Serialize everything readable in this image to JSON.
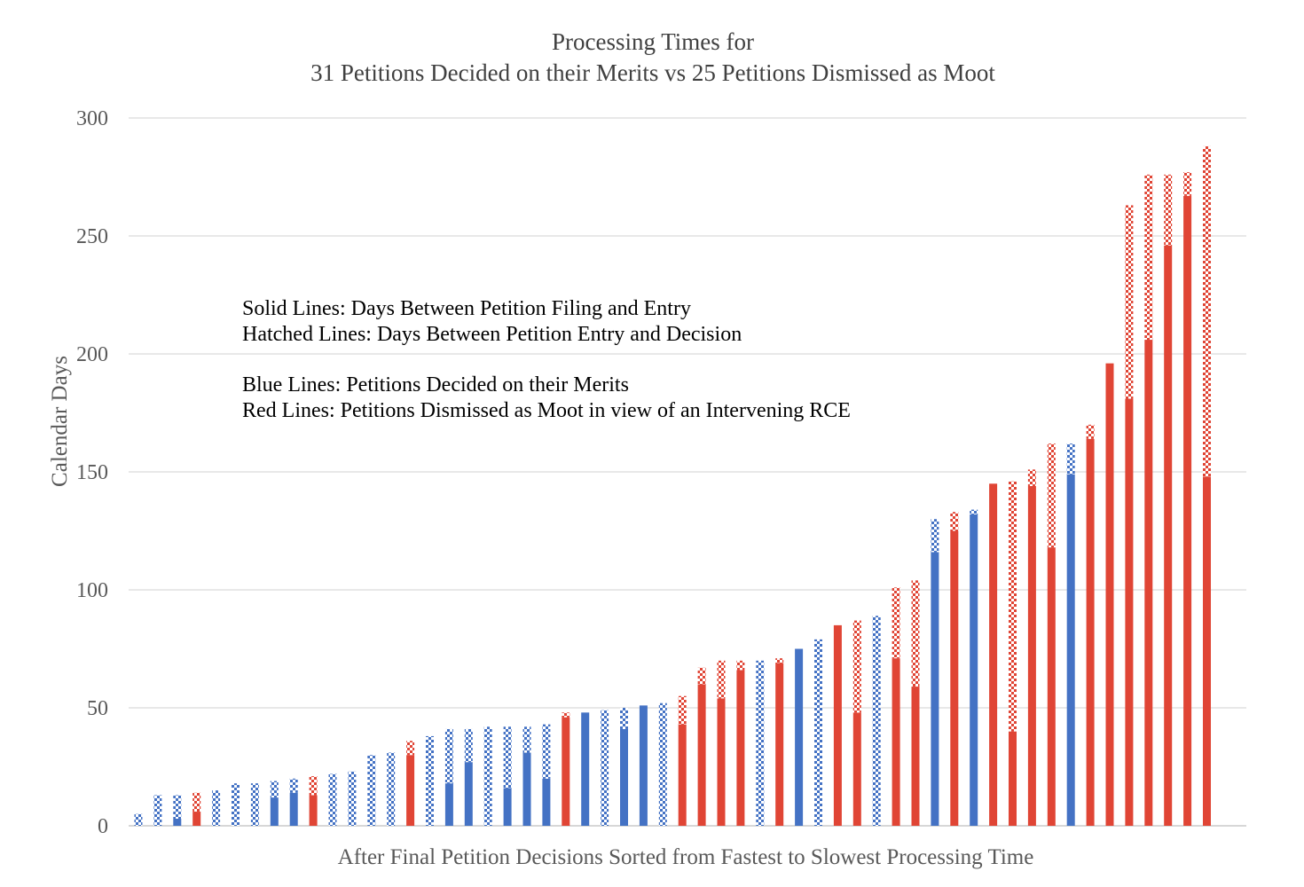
{
  "chart_data": {
    "type": "bar",
    "stacked": true,
    "title": "Processing Times for",
    "subtitle": "31 Petitions Decided on their Merits vs 25 Petitions Dismissed as Moot",
    "xlabel": "After Final Petition Decisions Sorted from Fastest to Slowest Processing Time",
    "ylabel": "Calendar Days",
    "ylim": [
      0,
      300
    ],
    "yticks": [
      0,
      50,
      100,
      150,
      200,
      250,
      300
    ],
    "grid": true,
    "legend_notes": [
      "Solid Lines:  Days Between Petition Filing and Entry",
      "Hatched Lines:  Days Between Petition Entry and Decision",
      "Blue Lines:  Petitions Decided on their Merits",
      "Red Lines:  Petitions Dismissed as Moot in view of an Intervening RCE"
    ],
    "colors": {
      "merits": "#4472c4",
      "moot": "#e04535"
    },
    "series": [
      {
        "key": "filing_to_entry",
        "style": "solid"
      },
      {
        "key": "entry_to_decision",
        "style": "hatched"
      }
    ],
    "bars": [
      {
        "group": "merits",
        "filing_to_entry": 0,
        "entry_to_decision": 5
      },
      {
        "group": "merits",
        "filing_to_entry": 0,
        "entry_to_decision": 13
      },
      {
        "group": "merits",
        "filing_to_entry": 3,
        "entry_to_decision": 10
      },
      {
        "group": "moot",
        "filing_to_entry": 6,
        "entry_to_decision": 8
      },
      {
        "group": "merits",
        "filing_to_entry": 0,
        "entry_to_decision": 15
      },
      {
        "group": "merits",
        "filing_to_entry": 0,
        "entry_to_decision": 18
      },
      {
        "group": "merits",
        "filing_to_entry": 0,
        "entry_to_decision": 18
      },
      {
        "group": "merits",
        "filing_to_entry": 12,
        "entry_to_decision": 7
      },
      {
        "group": "merits",
        "filing_to_entry": 14,
        "entry_to_decision": 6
      },
      {
        "group": "moot",
        "filing_to_entry": 13,
        "entry_to_decision": 8
      },
      {
        "group": "merits",
        "filing_to_entry": 0,
        "entry_to_decision": 22
      },
      {
        "group": "merits",
        "filing_to_entry": 0,
        "entry_to_decision": 23
      },
      {
        "group": "merits",
        "filing_to_entry": 0,
        "entry_to_decision": 30
      },
      {
        "group": "merits",
        "filing_to_entry": 0,
        "entry_to_decision": 31
      },
      {
        "group": "moot",
        "filing_to_entry": 30,
        "entry_to_decision": 6
      },
      {
        "group": "merits",
        "filing_to_entry": 0,
        "entry_to_decision": 38
      },
      {
        "group": "merits",
        "filing_to_entry": 18,
        "entry_to_decision": 23
      },
      {
        "group": "merits",
        "filing_to_entry": 27,
        "entry_to_decision": 14
      },
      {
        "group": "merits",
        "filing_to_entry": 0,
        "entry_to_decision": 42
      },
      {
        "group": "merits",
        "filing_to_entry": 16,
        "entry_to_decision": 26
      },
      {
        "group": "merits",
        "filing_to_entry": 31,
        "entry_to_decision": 11
      },
      {
        "group": "merits",
        "filing_to_entry": 20,
        "entry_to_decision": 23
      },
      {
        "group": "moot",
        "filing_to_entry": 46,
        "entry_to_decision": 2
      },
      {
        "group": "merits",
        "filing_to_entry": 48,
        "entry_to_decision": 0
      },
      {
        "group": "merits",
        "filing_to_entry": 0,
        "entry_to_decision": 49
      },
      {
        "group": "merits",
        "filing_to_entry": 41,
        "entry_to_decision": 9
      },
      {
        "group": "merits",
        "filing_to_entry": 51,
        "entry_to_decision": 0
      },
      {
        "group": "merits",
        "filing_to_entry": 0,
        "entry_to_decision": 52
      },
      {
        "group": "moot",
        "filing_to_entry": 43,
        "entry_to_decision": 12
      },
      {
        "group": "moot",
        "filing_to_entry": 60,
        "entry_to_decision": 7
      },
      {
        "group": "moot",
        "filing_to_entry": 54,
        "entry_to_decision": 16
      },
      {
        "group": "moot",
        "filing_to_entry": 66,
        "entry_to_decision": 4
      },
      {
        "group": "merits",
        "filing_to_entry": 0,
        "entry_to_decision": 70
      },
      {
        "group": "moot",
        "filing_to_entry": 69,
        "entry_to_decision": 2
      },
      {
        "group": "merits",
        "filing_to_entry": 75,
        "entry_to_decision": 0
      },
      {
        "group": "merits",
        "filing_to_entry": 0,
        "entry_to_decision": 79
      },
      {
        "group": "moot",
        "filing_to_entry": 85,
        "entry_to_decision": 0
      },
      {
        "group": "moot",
        "filing_to_entry": 48,
        "entry_to_decision": 39
      },
      {
        "group": "merits",
        "filing_to_entry": 0,
        "entry_to_decision": 89
      },
      {
        "group": "moot",
        "filing_to_entry": 71,
        "entry_to_decision": 30
      },
      {
        "group": "moot",
        "filing_to_entry": 59,
        "entry_to_decision": 45
      },
      {
        "group": "merits",
        "filing_to_entry": 116,
        "entry_to_decision": 14
      },
      {
        "group": "moot",
        "filing_to_entry": 125,
        "entry_to_decision": 8
      },
      {
        "group": "merits",
        "filing_to_entry": 132,
        "entry_to_decision": 2
      },
      {
        "group": "moot",
        "filing_to_entry": 145,
        "entry_to_decision": 0
      },
      {
        "group": "moot",
        "filing_to_entry": 40,
        "entry_to_decision": 106
      },
      {
        "group": "moot",
        "filing_to_entry": 144,
        "entry_to_decision": 7
      },
      {
        "group": "moot",
        "filing_to_entry": 118,
        "entry_to_decision": 44
      },
      {
        "group": "merits",
        "filing_to_entry": 149,
        "entry_to_decision": 13
      },
      {
        "group": "moot",
        "filing_to_entry": 164,
        "entry_to_decision": 6
      },
      {
        "group": "moot",
        "filing_to_entry": 196,
        "entry_to_decision": 0
      },
      {
        "group": "moot",
        "filing_to_entry": 181,
        "entry_to_decision": 82
      },
      {
        "group": "moot",
        "filing_to_entry": 206,
        "entry_to_decision": 70
      },
      {
        "group": "moot",
        "filing_to_entry": 246,
        "entry_to_decision": 30
      },
      {
        "group": "moot",
        "filing_to_entry": 267,
        "entry_to_decision": 10
      },
      {
        "group": "moot",
        "filing_to_entry": 148,
        "entry_to_decision": 140
      }
    ]
  }
}
